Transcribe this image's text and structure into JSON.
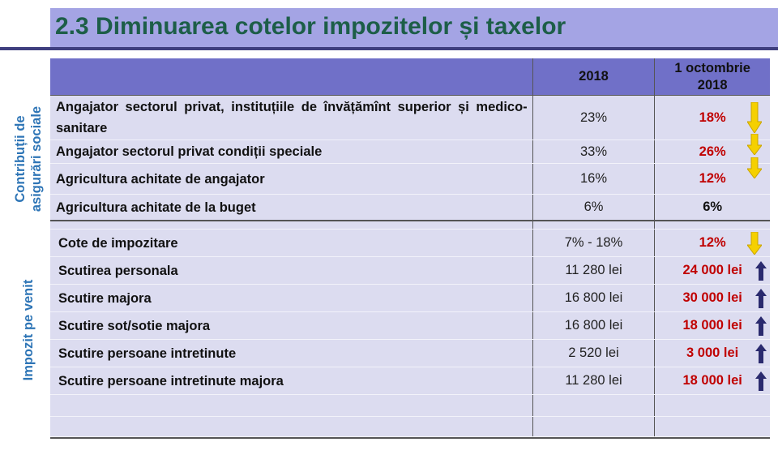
{
  "title": "2.3 Diminuarea cotelor impozitelor și taxelor",
  "table": {
    "header": [
      "2018",
      "1 octombrie 2018"
    ],
    "groups": [
      {
        "label": "Contribuții de asigurări sociale",
        "rows": [
          [
            "Angajator sectorul privat, instituțiile de învățămînt superior și medico-sanitare",
            "23%",
            "18%"
          ],
          [
            "Angajator sectorul privat condiții speciale",
            "33%",
            "26%"
          ],
          [
            "Agricultura achitate de angajator",
            "16%",
            "12%"
          ],
          [
            "Agricultura achitate de la buget",
            "6%",
            "6%"
          ]
        ]
      },
      {
        "label": "Impozit pe venit",
        "rows": [
          [
            "Cote de impozitare",
            "7% - 18%",
            "12%"
          ],
          [
            "Scutirea personala",
            "11 280 lei",
            "24 000 lei"
          ],
          [
            "Scutire majora",
            "16 800 lei",
            "30 000 lei"
          ],
          [
            "Scutire sot/sotie majora",
            "16 800 lei",
            "18 000 lei"
          ],
          [
            "Scutire persoane intretinute",
            "2 520 lei",
            "3 000 lei"
          ],
          [
            "Scutire persoane intretinute majora",
            "11 280 lei",
            "18 000 lei"
          ]
        ]
      }
    ]
  }
}
